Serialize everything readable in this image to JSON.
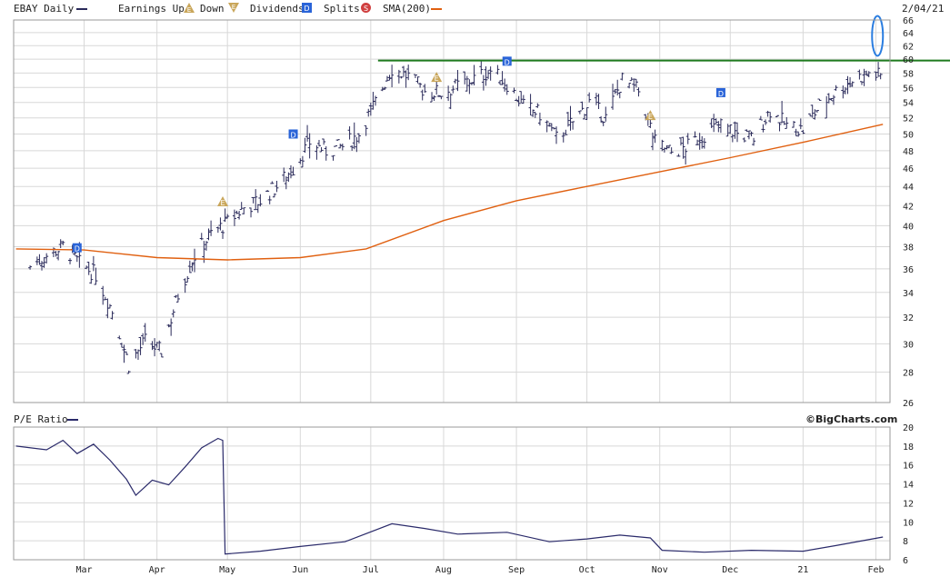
{
  "header": {
    "symbol_label": "EBAY Daily",
    "earnings_up_label": "Earnings Up",
    "down_label": "Down",
    "dividends_label": "Dividends",
    "splits_label": "Splits",
    "sma_label": "SMA(200)",
    "date_label": "2/04/21"
  },
  "lower_panel": {
    "title": "P/E Ratio",
    "credit": "©BigCharts.com"
  },
  "colors": {
    "price_bars": "#2a2a5a",
    "sma": "#e06010",
    "resistance": "#1e7a1e",
    "circle": "#2a7de0",
    "pe_line": "#2a2a6a",
    "grid": "#d8d8d8",
    "earnings_badge": "#c9a65a",
    "dividend_badge": "#2a64d8",
    "split_badge": "#d04040"
  },
  "chart_data": [
    {
      "type": "ohlc",
      "title": "EBAY Daily",
      "x_tick_labels": [
        "Mar",
        "Apr",
        "May",
        "Jun",
        "Jul",
        "Aug",
        "Sep",
        "Oct",
        "Nov",
        "Dec",
        "21",
        "Feb"
      ],
      "y_ticks": [
        26,
        28,
        30,
        32,
        34,
        36,
        38,
        40,
        42,
        44,
        46,
        48,
        50,
        52,
        54,
        56,
        58,
        60,
        62,
        64,
        66
      ],
      "ylim": [
        26,
        66
      ],
      "y_scale": "log",
      "grid": true,
      "series": [
        {
          "name": "EBAY",
          "close_by_week": [
            {
              "date": "2020-02-07",
              "close": 36.2
            },
            {
              "date": "2020-02-14",
              "close": 37.2
            },
            {
              "date": "2020-02-21",
              "close": 38.0
            },
            {
              "date": "2020-02-28",
              "close": 36.5
            },
            {
              "date": "2020-03-06",
              "close": 35.5
            },
            {
              "date": "2020-03-13",
              "close": 32.5
            },
            {
              "date": "2020-03-20",
              "close": 28.5
            },
            {
              "date": "2020-03-27",
              "close": 30.2
            },
            {
              "date": "2020-04-03",
              "close": 29.4
            },
            {
              "date": "2020-04-10",
              "close": 33.8
            },
            {
              "date": "2020-04-17",
              "close": 37.2
            },
            {
              "date": "2020-04-24",
              "close": 39.2
            },
            {
              "date": "2020-05-01",
              "close": 40.3
            },
            {
              "date": "2020-05-08",
              "close": 41.8
            },
            {
              "date": "2020-05-15",
              "close": 42.5
            },
            {
              "date": "2020-05-22",
              "close": 44.0
            },
            {
              "date": "2020-05-29",
              "close": 46.0
            },
            {
              "date": "2020-06-05",
              "close": 49.0
            },
            {
              "date": "2020-06-12",
              "close": 48.0
            },
            {
              "date": "2020-06-19",
              "close": 48.5
            },
            {
              "date": "2020-06-26",
              "close": 50.0
            },
            {
              "date": "2020-07-03",
              "close": 54.0
            },
            {
              "date": "2020-07-10",
              "close": 58.7
            },
            {
              "date": "2020-07-17",
              "close": 57.5
            },
            {
              "date": "2020-07-24",
              "close": 55.5
            },
            {
              "date": "2020-07-31",
              "close": 55.3
            },
            {
              "date": "2020-08-07",
              "close": 56.2
            },
            {
              "date": "2020-08-14",
              "close": 57.2
            },
            {
              "date": "2020-08-21",
              "close": 58.3
            },
            {
              "date": "2020-08-28",
              "close": 56.5
            },
            {
              "date": "2020-09-04",
              "close": 53.5
            },
            {
              "date": "2020-09-11",
              "close": 52.5
            },
            {
              "date": "2020-09-18",
              "close": 49.5
            },
            {
              "date": "2020-09-25",
              "close": 51.5
            },
            {
              "date": "2020-10-02",
              "close": 54.0
            },
            {
              "date": "2020-10-09",
              "close": 52.0
            },
            {
              "date": "2020-10-16",
              "close": 57.0
            },
            {
              "date": "2020-10-23",
              "close": 55.5
            },
            {
              "date": "2020-10-30",
              "close": 49.0
            },
            {
              "date": "2020-11-06",
              "close": 47.8
            },
            {
              "date": "2020-11-13",
              "close": 48.5
            },
            {
              "date": "2020-11-20",
              "close": 50.0
            },
            {
              "date": "2020-11-27",
              "close": 51.2
            },
            {
              "date": "2020-12-04",
              "close": 50.0
            },
            {
              "date": "2020-12-11",
              "close": 49.5
            },
            {
              "date": "2020-12-18",
              "close": 53.0
            },
            {
              "date": "2020-12-25",
              "close": 51.0
            },
            {
              "date": "2021-01-01",
              "close": 50.5
            },
            {
              "date": "2021-01-08",
              "close": 53.5
            },
            {
              "date": "2021-01-15",
              "close": 55.5
            },
            {
              "date": "2021-01-22",
              "close": 57.0
            },
            {
              "date": "2021-01-29",
              "close": 58.0
            },
            {
              "date": "2021-02-04",
              "close": 57.5
            }
          ]
        },
        {
          "name": "SMA(200)",
          "values": [
            {
              "date": "2020-02-01",
              "value": 37.8
            },
            {
              "date": "2020-03-01",
              "value": 37.7
            },
            {
              "date": "2020-04-01",
              "value": 37.0
            },
            {
              "date": "2020-05-01",
              "value": 36.8
            },
            {
              "date": "2020-06-01",
              "value": 37.0
            },
            {
              "date": "2020-06-29",
              "value": 37.8
            },
            {
              "date": "2020-08-01",
              "value": 40.5
            },
            {
              "date": "2020-09-01",
              "value": 42.5
            },
            {
              "date": "2020-10-01",
              "value": 44.0
            },
            {
              "date": "2020-11-01",
              "value": 45.6
            },
            {
              "date": "2020-12-01",
              "value": 47.2
            },
            {
              "date": "2021-01-01",
              "value": 49.0
            },
            {
              "date": "2021-02-04",
              "value": 51.2
            }
          ]
        }
      ],
      "annotations": [
        {
          "type": "horizontal_line",
          "value": 59.8
        },
        {
          "type": "ellipse",
          "date": "2021-02-04",
          "value": 63.5
        }
      ],
      "events": [
        {
          "type": "dividend",
          "label": "D",
          "date": "2020-02-27",
          "value": 37.9
        },
        {
          "type": "earnings_up",
          "label": "E",
          "date": "2020-04-29",
          "value": 42.4
        },
        {
          "type": "dividend",
          "label": "D",
          "date": "2020-05-29",
          "value": 50.0
        },
        {
          "type": "earnings_up",
          "label": "E",
          "date": "2020-07-29",
          "value": 57.4
        },
        {
          "type": "dividend",
          "label": "D",
          "date": "2020-08-28",
          "value": 59.7
        },
        {
          "type": "earnings_up",
          "label": "E",
          "date": "2020-10-28",
          "value": 52.3
        },
        {
          "type": "dividend",
          "label": "D",
          "date": "2020-11-27",
          "value": 55.3
        }
      ]
    },
    {
      "type": "line",
      "title": "P/E Ratio",
      "y_ticks": [
        6,
        8,
        10,
        12,
        14,
        16,
        18,
        20
      ],
      "ylim": [
        6,
        20
      ],
      "grid": true,
      "series": [
        {
          "name": "P/E Ratio",
          "values": [
            {
              "date": "2020-02-01",
              "value": 18.0
            },
            {
              "date": "2020-02-14",
              "value": 17.6
            },
            {
              "date": "2020-02-21",
              "value": 18.6
            },
            {
              "date": "2020-02-27",
              "value": 17.2
            },
            {
              "date": "2020-03-05",
              "value": 18.2
            },
            {
              "date": "2020-03-12",
              "value": 16.5
            },
            {
              "date": "2020-03-19",
              "value": 14.5
            },
            {
              "date": "2020-03-23",
              "value": 12.8
            },
            {
              "date": "2020-03-30",
              "value": 14.4
            },
            {
              "date": "2020-04-06",
              "value": 13.9
            },
            {
              "date": "2020-04-13",
              "value": 15.8
            },
            {
              "date": "2020-04-20",
              "value": 17.8
            },
            {
              "date": "2020-04-27",
              "value": 18.8
            },
            {
              "date": "2020-04-29",
              "value": 18.6
            },
            {
              "date": "2020-04-30",
              "value": 6.6
            },
            {
              "date": "2020-05-15",
              "value": 6.9
            },
            {
              "date": "2020-06-01",
              "value": 7.4
            },
            {
              "date": "2020-06-20",
              "value": 7.9
            },
            {
              "date": "2020-07-10",
              "value": 9.8
            },
            {
              "date": "2020-07-24",
              "value": 9.3
            },
            {
              "date": "2020-08-07",
              "value": 8.7
            },
            {
              "date": "2020-08-28",
              "value": 8.9
            },
            {
              "date": "2020-09-15",
              "value": 7.9
            },
            {
              "date": "2020-10-01",
              "value": 8.2
            },
            {
              "date": "2020-10-15",
              "value": 8.6
            },
            {
              "date": "2020-10-28",
              "value": 8.3
            },
            {
              "date": "2020-11-02",
              "value": 7.0
            },
            {
              "date": "2020-11-20",
              "value": 6.8
            },
            {
              "date": "2020-12-10",
              "value": 7.0
            },
            {
              "date": "2021-01-01",
              "value": 6.9
            },
            {
              "date": "2021-01-15",
              "value": 7.5
            },
            {
              "date": "2021-02-04",
              "value": 8.4
            }
          ]
        }
      ]
    }
  ]
}
